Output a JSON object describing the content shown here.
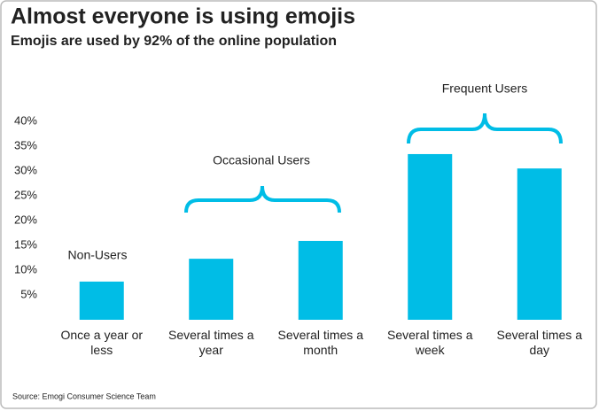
{
  "chart_data": {
    "type": "bar",
    "title": "Almost everyone is using emojis",
    "subtitle": "Emojis are used by 92% of the online population",
    "categories": [
      "Once a year or less",
      "Several times a year",
      "Several times a month",
      "Several times a week",
      "Several times a day"
    ],
    "values": [
      7.7,
      12.3,
      15.9,
      33.4,
      30.5
    ],
    "color": "#00bde6",
    "ylim": [
      0,
      40
    ],
    "yticks": [
      {
        "value": 5,
        "label": "5%"
      },
      {
        "value": 10,
        "label": "10%"
      },
      {
        "value": 15,
        "label": "15%"
      },
      {
        "value": 20,
        "label": "20%"
      },
      {
        "value": 25,
        "label": "25%"
      },
      {
        "value": 30,
        "label": "30%"
      },
      {
        "value": 35,
        "label": "35%"
      },
      {
        "value": 40,
        "label": "40%"
      }
    ],
    "annotations": [
      "Non-Users",
      "Occasional Users",
      "Frequent Users"
    ],
    "source": "Source: Emogi Consumer Science Team"
  }
}
